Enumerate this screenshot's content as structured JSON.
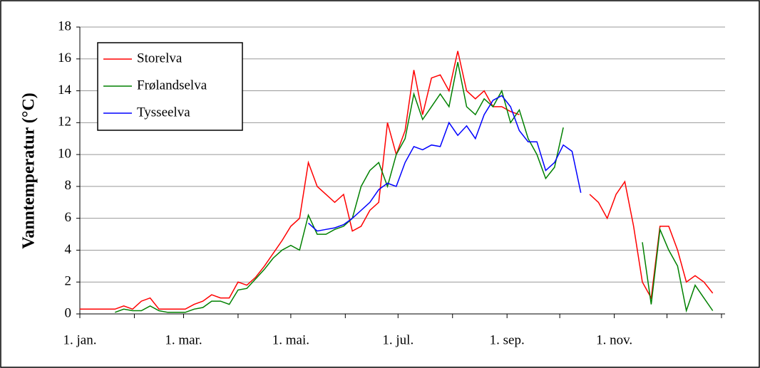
{
  "chart_data": {
    "type": "line",
    "y_axis_label": "Vanntemperatur (°C)",
    "x": [
      0,
      5,
      10,
      15,
      20,
      25,
      30,
      35,
      40,
      45,
      50,
      55,
      60,
      65,
      70,
      75,
      80,
      85,
      90,
      95,
      100,
      105,
      110,
      115,
      120,
      125,
      130,
      135,
      140,
      145,
      150,
      155,
      160,
      165,
      170,
      175,
      180,
      185,
      190,
      195,
      200,
      205,
      210,
      215,
      220,
      225,
      230,
      235,
      240,
      245,
      250,
      255,
      260,
      265,
      270,
      275,
      280,
      285,
      290,
      295,
      300,
      305,
      310,
      315,
      320,
      325,
      330,
      335,
      340,
      345,
      350,
      355,
      360
    ],
    "xlim": [
      0,
      365
    ],
    "xticks": [
      {
        "value": 0,
        "label": "1. jan."
      },
      {
        "value": 59,
        "label": "1. mar."
      },
      {
        "value": 120,
        "label": "1. mai."
      },
      {
        "value": 181,
        "label": "1. jul."
      },
      {
        "value": 243,
        "label": "1. sep."
      },
      {
        "value": 304,
        "label": "1. nov."
      }
    ],
    "xminorticks": [
      31,
      90,
      151,
      212,
      273,
      334,
      365
    ],
    "ylim": [
      0,
      18
    ],
    "yticks": [
      0,
      2,
      4,
      6,
      8,
      10,
      12,
      14,
      16,
      18
    ],
    "grid": true,
    "legend": "upper left",
    "series": [
      {
        "name": "Storelva",
        "color": "#ff0000",
        "values": [
          0.3,
          0.3,
          0.3,
          0.3,
          0.3,
          0.5,
          0.3,
          0.8,
          1.0,
          0.3,
          0.3,
          0.3,
          0.3,
          0.6,
          0.8,
          1.2,
          1.0,
          1.0,
          2.0,
          1.8,
          2.3,
          3.0,
          3.8,
          4.6,
          5.5,
          6.0,
          9.5,
          8.0,
          7.5,
          7.0,
          7.5,
          5.2,
          5.5,
          6.5,
          7.0,
          12.0,
          10.0,
          11.5,
          15.3,
          12.5,
          14.8,
          15.0,
          14.0,
          16.5,
          14.0,
          13.5,
          14.0,
          13.0,
          13.0,
          12.7,
          12.5,
          null,
          null,
          null,
          null,
          null,
          null,
          null,
          7.5,
          7.0,
          6.0,
          7.5,
          8.3,
          5.5,
          2.0,
          1.0,
          5.5,
          5.5,
          4.0,
          2.0,
          2.4,
          2.0,
          1.3
        ]
      },
      {
        "name": "Frølandselva",
        "color": "#008000",
        "values": [
          null,
          null,
          null,
          null,
          0.1,
          0.3,
          0.2,
          0.2,
          0.5,
          0.2,
          0.1,
          0.1,
          0.1,
          0.3,
          0.4,
          0.8,
          0.8,
          0.6,
          1.5,
          1.6,
          2.2,
          2.8,
          3.5,
          4.0,
          4.3,
          4.0,
          6.2,
          5.0,
          5.0,
          5.3,
          5.5,
          6.0,
          8.0,
          9.0,
          9.5,
          8.0,
          10.0,
          11.0,
          13.8,
          12.2,
          13.0,
          13.8,
          13.0,
          15.8,
          13.0,
          12.5,
          13.5,
          13.0,
          14.0,
          12.0,
          12.8,
          11.0,
          10.0,
          8.5,
          9.2,
          11.7,
          null,
          null,
          null,
          null,
          null,
          null,
          null,
          null,
          4.5,
          0.6,
          5.3,
          4.0,
          3.0,
          0.2,
          1.8,
          1.0,
          0.2
        ]
      },
      {
        "name": "Tysseelva",
        "color": "#0000ff",
        "values": [
          null,
          null,
          null,
          null,
          null,
          null,
          null,
          null,
          null,
          null,
          null,
          null,
          null,
          null,
          null,
          null,
          null,
          null,
          null,
          null,
          null,
          null,
          null,
          null,
          null,
          null,
          5.7,
          5.2,
          5.3,
          5.4,
          5.6,
          6.0,
          6.5,
          7.0,
          7.8,
          8.2,
          8.0,
          9.5,
          10.5,
          10.3,
          10.6,
          10.5,
          12.0,
          11.2,
          11.8,
          11.0,
          12.5,
          13.4,
          13.7,
          13.0,
          11.5,
          10.8,
          10.8,
          9.0,
          9.5,
          10.6,
          10.2,
          7.6,
          null,
          null,
          null,
          null,
          null,
          null,
          null,
          null,
          null,
          null,
          null,
          null,
          null,
          null,
          null
        ]
      }
    ]
  }
}
